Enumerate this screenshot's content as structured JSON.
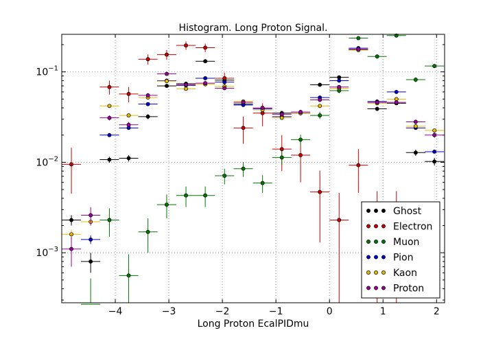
{
  "chart_data": {
    "type": "scatter",
    "title": "Histogram. Long Proton Signal.",
    "xlabel": "Long Proton EcalPIDmu",
    "ylabel": "",
    "xlim": [
      -5.0,
      2.15
    ],
    "ylim": [
      0.00028,
      0.26
    ],
    "yscale": "log",
    "grid": true,
    "legend_position": "bottom-right",
    "x_ticks": [
      {
        "v": -4,
        "label": "−4"
      },
      {
        "v": -3,
        "label": "−3"
      },
      {
        "v": -2,
        "label": "−2"
      },
      {
        "v": -1,
        "label": "−1"
      },
      {
        "v": 0,
        "label": "0"
      },
      {
        "v": 1,
        "label": "1"
      },
      {
        "v": 2,
        "label": "2"
      }
    ],
    "y_ticks": [
      {
        "v": 0.001,
        "base": "10",
        "exp": "−3"
      },
      {
        "v": 0.01,
        "base": "10",
        "exp": "−2"
      },
      {
        "v": 0.1,
        "base": "10",
        "exp": "−1"
      }
    ],
    "x_half_width": 0.18,
    "series": [
      {
        "name": "Ghost",
        "color": "#000000",
        "points": [
          [
            -4.82,
            0.0023,
            0.0003
          ],
          [
            -4.46,
            0.0008,
            0.0002
          ],
          [
            -4.11,
            0.0107,
            0.0008
          ],
          [
            -3.75,
            0.0111,
            0.0009
          ],
          [
            -3.39,
            0.032,
            0.002
          ],
          [
            -3.04,
            0.07,
            0.003
          ],
          [
            -2.68,
            0.074,
            0.003
          ],
          [
            -2.32,
            0.131,
            0.004
          ],
          [
            -1.96,
            0.081,
            0.003
          ],
          [
            -1.61,
            0.044,
            0.002
          ],
          [
            -1.25,
            0.039,
            0.002
          ],
          [
            -0.89,
            0.035,
            0.002
          ],
          [
            -0.54,
            0.035,
            0.002
          ],
          [
            -0.18,
            0.072,
            0.003
          ],
          [
            0.18,
            0.087,
            0.004
          ],
          [
            0.54,
            0.176,
            0.005
          ],
          [
            0.89,
            0.039,
            0.002
          ],
          [
            1.25,
            0.045,
            0.002
          ],
          [
            1.61,
            0.0128,
            0.001
          ],
          [
            1.96,
            0.0102,
            0.001
          ]
        ]
      },
      {
        "name": "Electron",
        "color": "#cc0000",
        "points": [
          [
            -4.82,
            0.0095,
            0.005
          ],
          [
            -4.11,
            0.068,
            0.012
          ],
          [
            -3.75,
            0.057,
            0.011
          ],
          [
            -3.39,
            0.138,
            0.018
          ],
          [
            -3.04,
            0.155,
            0.019
          ],
          [
            -2.68,
            0.196,
            0.021
          ],
          [
            -2.32,
            0.185,
            0.02
          ],
          [
            -1.96,
            0.085,
            0.013
          ],
          [
            -1.61,
            0.024,
            0.008
          ],
          [
            -1.25,
            0.035,
            0.01
          ],
          [
            -0.89,
            0.014,
            0.006
          ],
          [
            -0.54,
            0.012,
            0.006
          ],
          [
            -0.18,
            0.0047,
            0.0034
          ],
          [
            0.18,
            0.0023,
            0.0023
          ],
          [
            0.54,
            0.0093,
            0.0047
          ],
          [
            0.89,
            0.0024,
            0.0024
          ],
          [
            1.25,
            0.0024,
            0.0024
          ]
        ]
      },
      {
        "name": "Muon",
        "color": "#007700",
        "points": [
          [
            -4.46,
            0.00027,
            0.00025
          ],
          [
            -4.11,
            0.0023,
            0.0008
          ],
          [
            -3.75,
            0.00056,
            0.0004
          ],
          [
            -3.39,
            0.0017,
            0.0007
          ],
          [
            -3.04,
            0.0034,
            0.001
          ],
          [
            -2.68,
            0.0043,
            0.0011
          ],
          [
            -2.32,
            0.0043,
            0.0011
          ],
          [
            -1.96,
            0.0071,
            0.0014
          ],
          [
            -1.61,
            0.0085,
            0.0016
          ],
          [
            -1.25,
            0.0059,
            0.0013
          ],
          [
            -0.89,
            0.0113,
            0.0019
          ],
          [
            -0.54,
            0.0178,
            0.0024
          ],
          [
            -0.18,
            0.033,
            0.003
          ],
          [
            0.18,
            0.062,
            0.004
          ],
          [
            0.54,
            0.236,
            0.008
          ],
          [
            0.89,
            0.148,
            0.007
          ],
          [
            1.25,
            0.252,
            0.009
          ],
          [
            1.61,
            0.082,
            0.005
          ],
          [
            1.96,
            0.116,
            0.006
          ]
        ]
      },
      {
        "name": "Pion",
        "color": "#0000cc",
        "points": [
          [
            -4.46,
            0.0014,
            0.00015
          ],
          [
            -4.11,
            0.02,
            0.0006
          ],
          [
            -3.75,
            0.024,
            0.0007
          ],
          [
            -3.39,
            0.044,
            0.001
          ],
          [
            -3.04,
            0.08,
            0.0013
          ],
          [
            -2.68,
            0.071,
            0.0012
          ],
          [
            -2.32,
            0.085,
            0.0013
          ],
          [
            -1.96,
            0.077,
            0.0013
          ],
          [
            -1.61,
            0.043,
            0.001
          ],
          [
            -1.25,
            0.039,
            0.0009
          ],
          [
            -0.89,
            0.032,
            0.0008
          ],
          [
            -0.54,
            0.035,
            0.0009
          ],
          [
            -0.18,
            0.052,
            0.001
          ],
          [
            0.18,
            0.08,
            0.0013
          ],
          [
            0.54,
            0.183,
            0.002
          ],
          [
            0.89,
            0.047,
            0.001
          ],
          [
            1.25,
            0.06,
            0.0011
          ],
          [
            1.61,
            0.024,
            0.0007
          ],
          [
            1.96,
            0.0131,
            0.0005
          ]
        ]
      },
      {
        "name": "Kaon",
        "color": "#e6b800",
        "points": [
          [
            -4.82,
            0.0016,
            0.0002
          ],
          [
            -4.46,
            0.0022,
            0.0002
          ],
          [
            -4.11,
            0.042,
            0.001
          ],
          [
            -3.75,
            0.033,
            0.0009
          ],
          [
            -3.39,
            0.052,
            0.0011
          ],
          [
            -3.04,
            0.079,
            0.0014
          ],
          [
            -2.68,
            0.065,
            0.0012
          ],
          [
            -2.32,
            0.073,
            0.0013
          ],
          [
            -1.96,
            0.069,
            0.0012
          ],
          [
            -1.61,
            0.047,
            0.001
          ],
          [
            -1.25,
            0.038,
            0.0009
          ],
          [
            -0.89,
            0.031,
            0.0008
          ],
          [
            -0.54,
            0.035,
            0.0009
          ],
          [
            -0.18,
            0.042,
            0.001
          ],
          [
            0.18,
            0.066,
            0.0012
          ],
          [
            0.54,
            0.174,
            0.002
          ],
          [
            0.89,
            0.045,
            0.001
          ],
          [
            1.25,
            0.05,
            0.001
          ],
          [
            1.61,
            0.025,
            0.0007
          ],
          [
            1.96,
            0.0225,
            0.0007
          ]
        ]
      },
      {
        "name": "Proton",
        "color": "#990099",
        "points": [
          [
            -4.82,
            0.0011,
            0.0004
          ],
          [
            -4.46,
            0.0026,
            0.0006
          ],
          [
            -4.11,
            0.031,
            0.002
          ],
          [
            -3.75,
            0.026,
            0.002
          ],
          [
            -3.39,
            0.055,
            0.003
          ],
          [
            -3.04,
            0.095,
            0.004
          ],
          [
            -2.68,
            0.072,
            0.003
          ],
          [
            -2.32,
            0.075,
            0.003
          ],
          [
            -1.96,
            0.066,
            0.003
          ],
          [
            -1.61,
            0.046,
            0.002
          ],
          [
            -1.25,
            0.04,
            0.002
          ],
          [
            -0.89,
            0.034,
            0.002
          ],
          [
            -0.54,
            0.036,
            0.002
          ],
          [
            -0.18,
            0.049,
            0.002
          ],
          [
            0.18,
            0.068,
            0.003
          ],
          [
            0.54,
            0.178,
            0.004
          ],
          [
            0.89,
            0.046,
            0.002
          ],
          [
            1.25,
            0.046,
            0.002
          ],
          [
            1.61,
            0.028,
            0.0015
          ],
          [
            1.96,
            0.02,
            0.0013
          ]
        ]
      }
    ]
  }
}
